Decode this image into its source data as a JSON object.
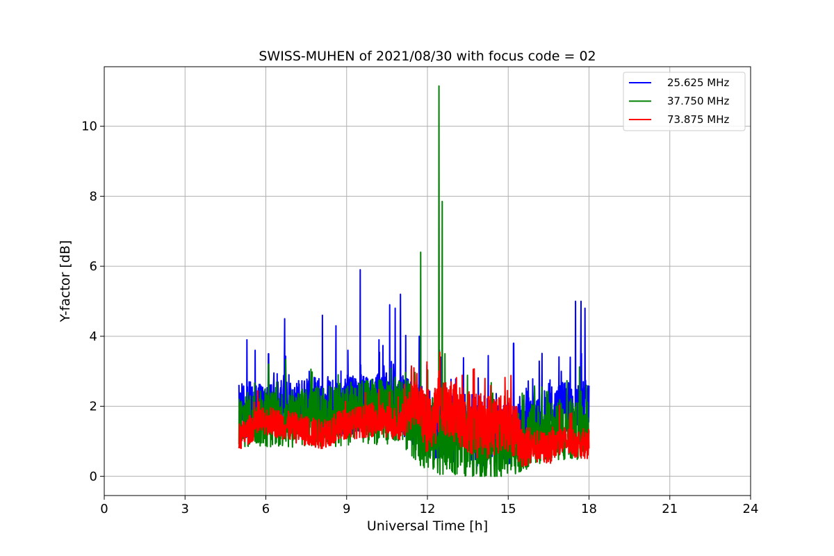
{
  "chart_data": {
    "type": "line",
    "title": "SWISS-MUHEN of 2021/08/30 with focus code = 02",
    "xlabel": "Universal Time [h]",
    "ylabel": "Y-factor [dB]",
    "xlim": [
      0,
      24
    ],
    "ylim": [
      -0.55,
      11.7
    ],
    "xticks": [
      0,
      3,
      6,
      9,
      12,
      15,
      18,
      21,
      24
    ],
    "yticks": [
      0,
      2,
      4,
      6,
      8,
      10
    ],
    "grid": true,
    "legend_position": "top-right",
    "series": [
      {
        "name": "25.625 MHz",
        "color": "#0000ff",
        "x_range": [
          5.0,
          18.0
        ],
        "baseline": [
          [
            5,
            1.9
          ],
          [
            8,
            2.0
          ],
          [
            11,
            2.1
          ],
          [
            12,
            1.5
          ],
          [
            14,
            1.3
          ],
          [
            15,
            1.2
          ],
          [
            16,
            1.6
          ],
          [
            17,
            1.9
          ],
          [
            18,
            2.0
          ]
        ],
        "spread": [
          [
            5,
            1.0
          ],
          [
            11,
            1.1
          ],
          [
            12,
            1.2
          ],
          [
            14,
            1.3
          ],
          [
            15,
            1.3
          ],
          [
            16,
            1.0
          ],
          [
            18,
            1.0
          ]
        ],
        "peaks": [
          [
            5.3,
            3.9
          ],
          [
            5.6,
            3.6
          ],
          [
            6.1,
            3.5
          ],
          [
            6.7,
            4.5
          ],
          [
            8.1,
            4.6
          ],
          [
            8.6,
            4.3
          ],
          [
            9.5,
            5.9
          ],
          [
            10.2,
            3.9
          ],
          [
            10.6,
            4.9
          ],
          [
            10.8,
            4.8
          ],
          [
            11.0,
            5.2
          ],
          [
            11.7,
            4.0
          ],
          [
            15.2,
            3.8
          ],
          [
            17.3,
            3.4
          ],
          [
            17.5,
            5.0
          ],
          [
            17.7,
            5.0
          ],
          [
            17.85,
            4.8
          ]
        ]
      },
      {
        "name": "37.750 MHz",
        "color": "#008000",
        "x_range": [
          5.0,
          18.0
        ],
        "baseline": [
          [
            5,
            1.6
          ],
          [
            8,
            1.7
          ],
          [
            11,
            1.9
          ],
          [
            12,
            1.2
          ],
          [
            14,
            0.9
          ],
          [
            15,
            0.9
          ],
          [
            16,
            1.2
          ],
          [
            17,
            1.3
          ],
          [
            18,
            1.3
          ]
        ],
        "spread": [
          [
            5,
            1.0
          ],
          [
            11,
            1.2
          ],
          [
            12,
            1.4
          ],
          [
            14,
            1.2
          ],
          [
            15,
            1.2
          ],
          [
            16,
            1.1
          ],
          [
            18,
            1.0
          ]
        ],
        "peaks": [
          [
            11.75,
            6.4
          ],
          [
            12.43,
            11.15
          ],
          [
            12.55,
            7.85
          ],
          [
            12.65,
            3.5
          ],
          [
            6.1,
            3.2
          ]
        ]
      },
      {
        "name": "73.875 MHz",
        "color": "#ff0000",
        "x_range": [
          5.0,
          18.0
        ],
        "baseline": [
          [
            5,
            1.1
          ],
          [
            5.5,
            1.4
          ],
          [
            6,
            1.6
          ],
          [
            7,
            1.4
          ],
          [
            8,
            1.2
          ],
          [
            9,
            1.5
          ],
          [
            10,
            1.6
          ],
          [
            11,
            1.5
          ],
          [
            11.6,
            2.2
          ],
          [
            12,
            1.4
          ],
          [
            12.5,
            2.0
          ],
          [
            14,
            1.4
          ],
          [
            15,
            1.6
          ],
          [
            15.5,
            0.9
          ],
          [
            16.5,
            0.8
          ],
          [
            17,
            1.0
          ],
          [
            18,
            0.9
          ]
        ],
        "spread": [
          [
            5,
            0.5
          ],
          [
            11,
            0.6
          ],
          [
            12,
            1.0
          ],
          [
            14,
            1.2
          ],
          [
            15,
            1.1
          ],
          [
            16,
            0.6
          ],
          [
            18,
            0.5
          ]
        ],
        "peaks": [
          [
            11.5,
            3.1
          ],
          [
            12.4,
            2.8
          ]
        ]
      }
    ]
  }
}
